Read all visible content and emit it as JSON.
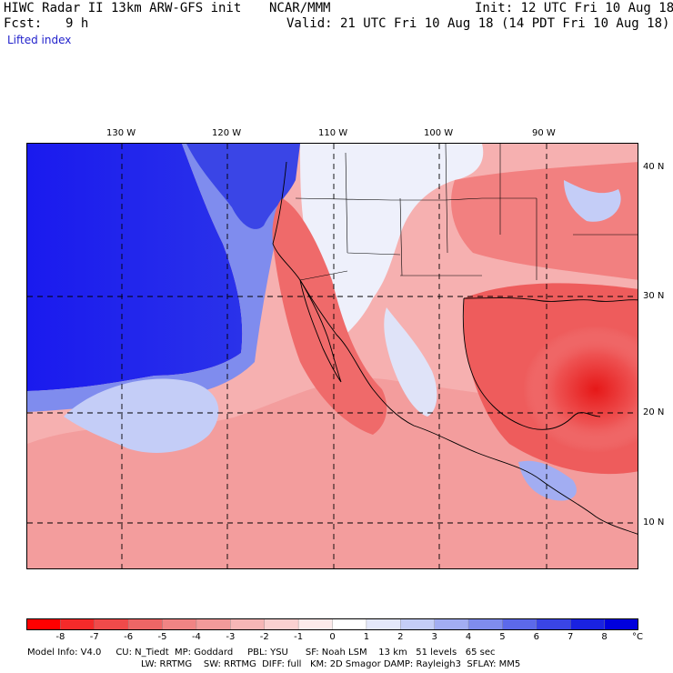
{
  "header": {
    "title": "HIWC Radar II 13km ARW-GFS init",
    "org": "NCAR/MMM",
    "init": "Init: 12 UTC Fri 10 Aug 18",
    "fcst_label": "Fcst:",
    "fcst_value": "9 h",
    "valid": "Valid: 21 UTC Fri 10 Aug 18 (14 PDT Fri 10 Aug 18)",
    "field": "Lifted index"
  },
  "map": {
    "lon_labels": [
      "130 W",
      "120 W",
      "110 W",
      "100 W",
      "90 W"
    ],
    "lat_labels": [
      "40 N",
      "30 N",
      "20 N",
      "10 N"
    ],
    "colors": {
      "ocean_stable": "#1a1aee",
      "ocean_mid": "#6f7ff0",
      "neutral": "#f4f4fb",
      "unstable_light": "#f6b3b3",
      "unstable": "#ef6a6a",
      "unstable_strong": "#e82020"
    }
  },
  "colorbar": {
    "unit": "°C",
    "labels": [
      "-8",
      "-7",
      "-6",
      "-5",
      "-4",
      "-3",
      "-2",
      "-1",
      "0",
      "1",
      "2",
      "3",
      "4",
      "5",
      "6",
      "7",
      "8"
    ],
    "colors": [
      "#ff0000",
      "#f52a2a",
      "#f04a4a",
      "#ee6666",
      "#f08484",
      "#f29a9a",
      "#f6b6b6",
      "#fad0d0",
      "#fdeaea",
      "#ffffff",
      "#e4e8fa",
      "#c4cdf7",
      "#a2adf2",
      "#7f8cee",
      "#5c69ea",
      "#3a45e6",
      "#1a22e0",
      "#0000dd"
    ]
  },
  "footer": {
    "line1": "Model Info: V4.0     CU: N_Tiedt  MP: Goddard     PBL: YSU      SF: Noah LSM    13 km   51 levels   65 sec",
    "line2": "LW: RRTMG    SW: RRTMG  DIFF: full   KM: 2D Smagor DAMP: Rayleigh3  SFLAY: MM5"
  }
}
